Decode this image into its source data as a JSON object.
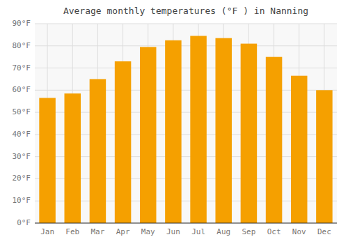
{
  "chart_data": {
    "type": "bar",
    "title": "Average monthly temperatures (°F ) in Nanning",
    "categories": [
      "Jan",
      "Feb",
      "Mar",
      "Apr",
      "May",
      "Jun",
      "Jul",
      "Aug",
      "Sep",
      "Oct",
      "Nov",
      "Dec"
    ],
    "values": [
      56.5,
      58.5,
      65.0,
      73.0,
      79.5,
      82.5,
      84.5,
      83.5,
      81.0,
      75.0,
      66.5,
      60.0
    ],
    "color": "#F5A000",
    "ylim": [
      0,
      90
    ],
    "yticks": [
      {
        "value": 0,
        "label": "0°F"
      },
      {
        "value": 10,
        "label": "10°F"
      },
      {
        "value": 20,
        "label": "20°F"
      },
      {
        "value": 30,
        "label": "30°F"
      },
      {
        "value": 40,
        "label": "40°F"
      },
      {
        "value": 50,
        "label": "50°F"
      },
      {
        "value": 60,
        "label": "60°F"
      },
      {
        "value": 70,
        "label": "70°F"
      },
      {
        "value": 80,
        "label": "80°F"
      },
      {
        "value": 90,
        "label": "90°F"
      }
    ],
    "grid": true
  }
}
